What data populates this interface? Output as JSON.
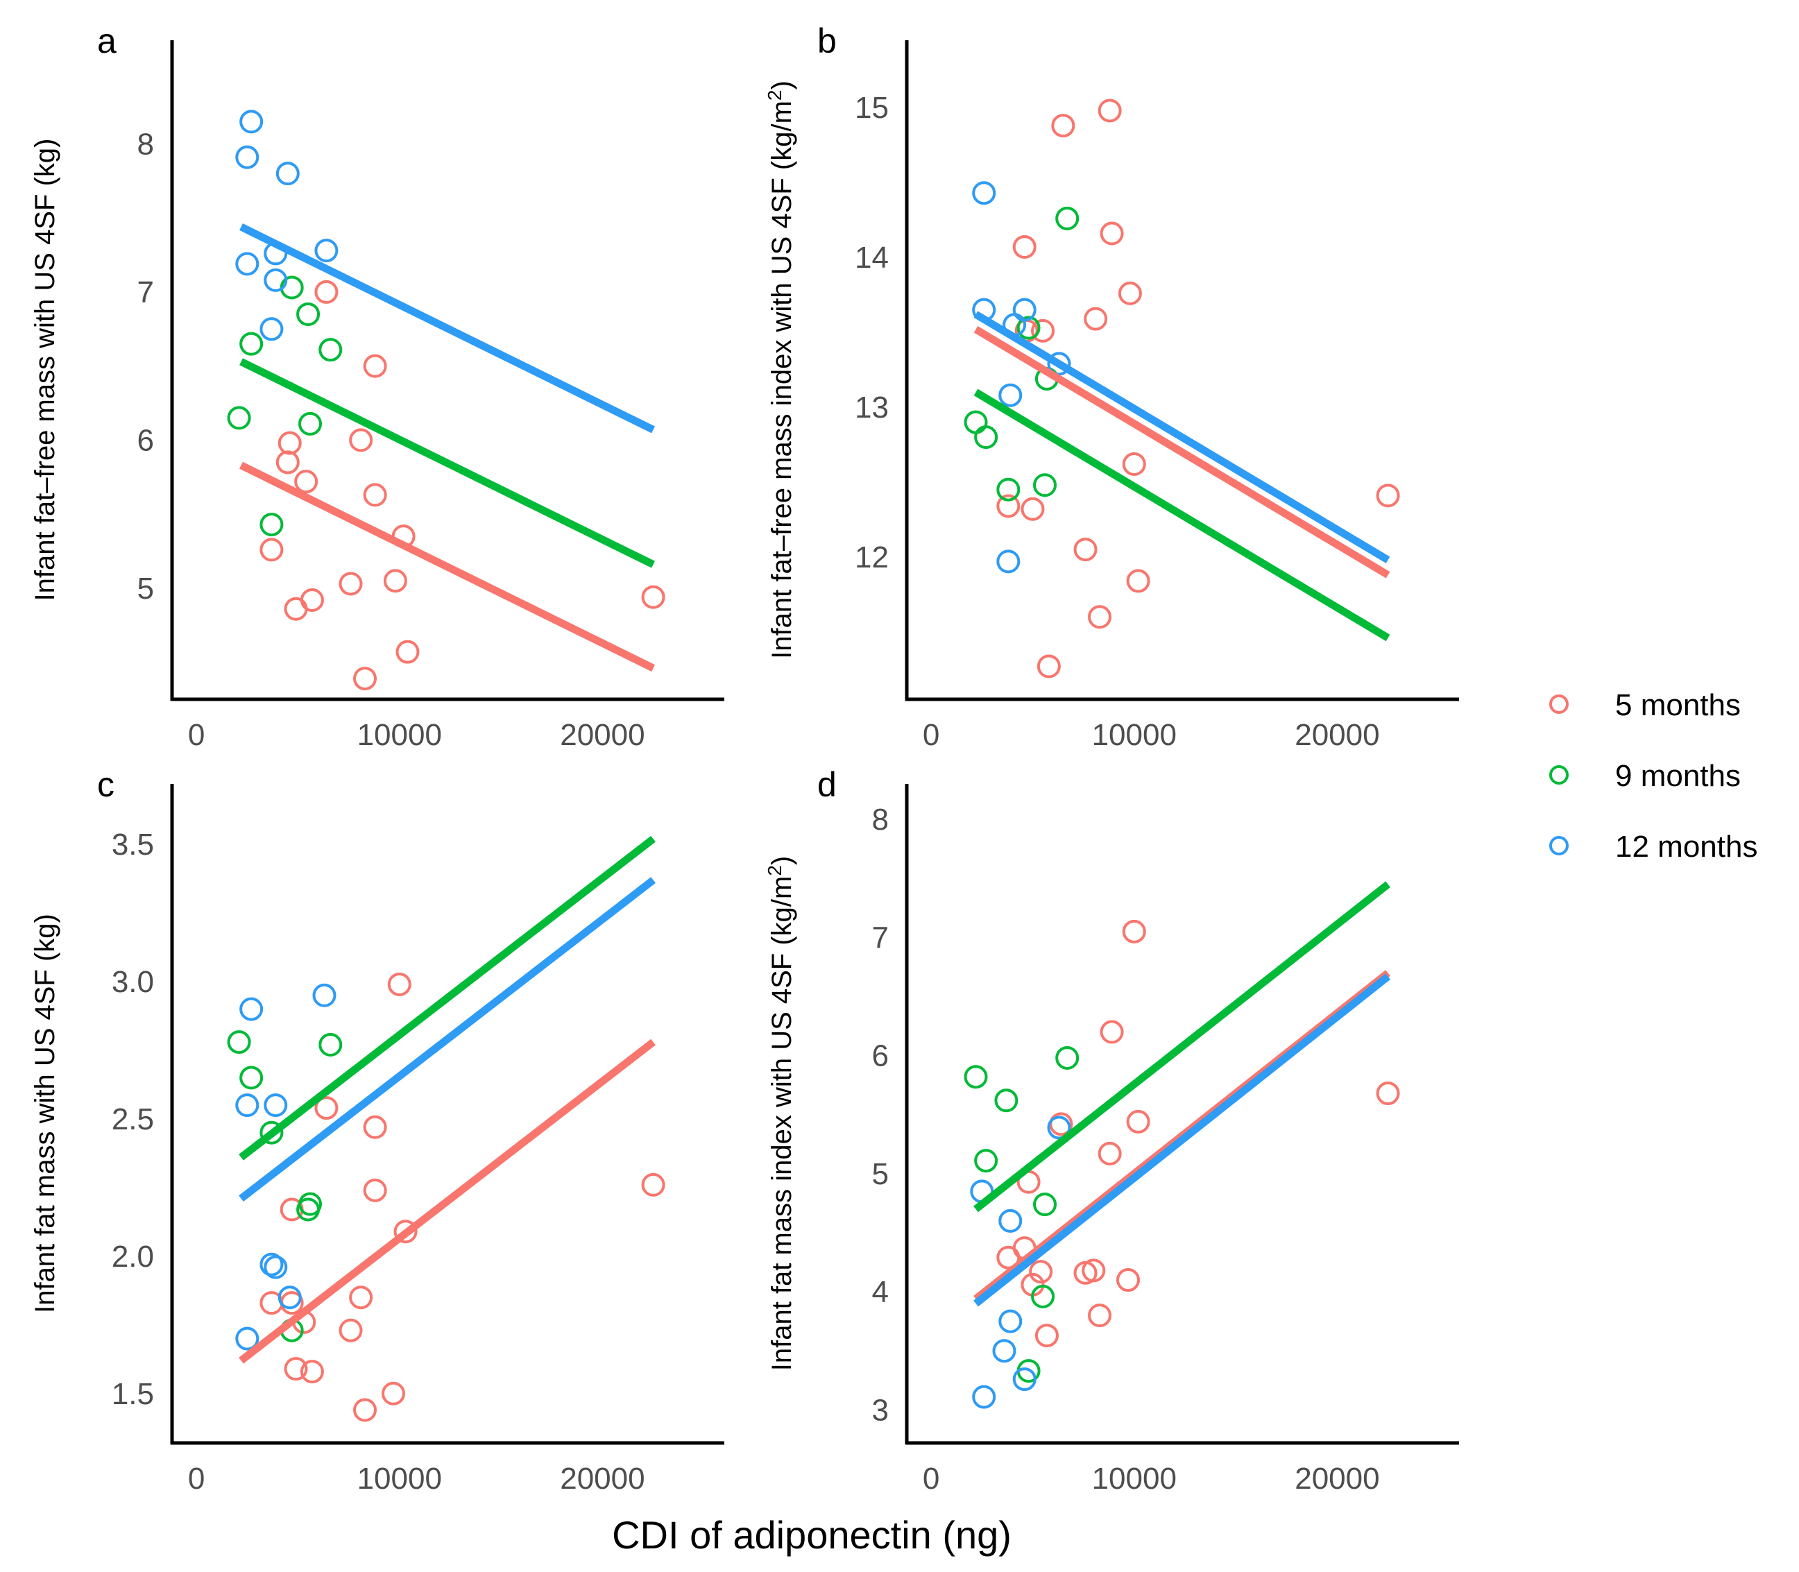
{
  "figure": {
    "xlabel": "CDI of adiponectin (ng)"
  },
  "legend": [
    {
      "label": "5 months",
      "color": "#F8766D"
    },
    {
      "label": "9 months",
      "color": "#00BA38"
    },
    {
      "label": "12 months",
      "color": "#2E9BF5"
    }
  ],
  "chart_data": [
    {
      "panel": "a",
      "type": "scatter",
      "ylabel": "Infant fat–free mass with US 4SF (kg)",
      "xlim": [
        -1200,
        26000
      ],
      "ylim": [
        4.25,
        8.7
      ],
      "xticks": [
        0,
        10000,
        20000
      ],
      "xtick_labels": [
        "0",
        "10000",
        "20000"
      ],
      "yticks": [
        5,
        6,
        7,
        8
      ],
      "ytick_labels": [
        "5",
        "6",
        "7",
        "8"
      ],
      "series": [
        {
          "name": "5 months",
          "color": "#F8766D",
          "points": [
            [
              6400,
              7.0
            ],
            [
              8800,
              6.5
            ],
            [
              8100,
              6.0
            ],
            [
              4600,
              5.98
            ],
            [
              4500,
              5.85
            ],
            [
              5400,
              5.72
            ],
            [
              8800,
              5.63
            ],
            [
              10200,
              5.35
            ],
            [
              3700,
              5.26
            ],
            [
              9800,
              5.05
            ],
            [
              7600,
              5.03
            ],
            [
              5700,
              4.92
            ],
            [
              4900,
              4.86
            ],
            [
              22500,
              4.94
            ],
            [
              10400,
              4.57
            ],
            [
              8300,
              4.39
            ]
          ],
          "fit": [
            [
              2200,
              5.83
            ],
            [
              22500,
              4.46
            ]
          ]
        },
        {
          "name": "9 months",
          "color": "#00BA38",
          "points": [
            [
              4700,
              7.03
            ],
            [
              5500,
              6.85
            ],
            [
              2700,
              6.65
            ],
            [
              6600,
              6.61
            ],
            [
              2100,
              6.15
            ],
            [
              5600,
              6.11
            ],
            [
              3700,
              5.43
            ]
          ],
          "fit": [
            [
              2200,
              6.53
            ],
            [
              22500,
              5.16
            ]
          ]
        },
        {
          "name": "12 months",
          "color": "#2E9BF5",
          "points": [
            [
              2700,
              8.15
            ],
            [
              2500,
              7.91
            ],
            [
              4500,
              7.8
            ],
            [
              6400,
              7.28
            ],
            [
              3900,
              7.26
            ],
            [
              2500,
              7.19
            ],
            [
              3900,
              7.08
            ],
            [
              3700,
              6.75
            ]
          ],
          "fit": [
            [
              2200,
              7.44
            ],
            [
              22500,
              6.07
            ]
          ]
        }
      ]
    },
    {
      "panel": "b",
      "type": "scatter",
      "ylabel": "Infant fat–free mass index with US 4SF (kg/m",
      "ylabel_sup": "2",
      "ylabel_end": ")",
      "xlim": [
        -1200,
        26000
      ],
      "ylim": [
        11.05,
        15.45
      ],
      "xticks": [
        0,
        10000,
        20000
      ],
      "xtick_labels": [
        "0",
        "10000",
        "20000"
      ],
      "yticks": [
        12,
        13,
        14,
        15
      ],
      "ytick_labels": [
        "12",
        "13",
        "14",
        "15"
      ],
      "series": [
        {
          "name": "5 months",
          "color": "#F8766D",
          "points": [
            [
              8800,
              14.98
            ],
            [
              6500,
              14.88
            ],
            [
              8900,
              14.16
            ],
            [
              4600,
              14.07
            ],
            [
              9800,
              13.76
            ],
            [
              8100,
              13.59
            ],
            [
              5500,
              13.51
            ],
            [
              4700,
              13.51
            ],
            [
              10000,
              12.62
            ],
            [
              3800,
              12.34
            ],
            [
              5000,
              12.32
            ],
            [
              22500,
              12.41
            ],
            [
              7600,
              12.05
            ],
            [
              10200,
              11.84
            ],
            [
              8300,
              11.6
            ],
            [
              5800,
              11.27
            ]
          ],
          "fit": [
            [
              2200,
              13.52
            ],
            [
              22500,
              11.88
            ]
          ]
        },
        {
          "name": "9 months",
          "color": "#00BA38",
          "points": [
            [
              6700,
              14.26
            ],
            [
              4800,
              13.53
            ],
            [
              5700,
              13.19
            ],
            [
              2200,
              12.9
            ],
            [
              2700,
              12.8
            ],
            [
              3800,
              12.45
            ],
            [
              5600,
              12.48
            ]
          ],
          "fit": [
            [
              2200,
              13.1
            ],
            [
              22500,
              11.46
            ]
          ]
        },
        {
          "name": "12 months",
          "color": "#2E9BF5",
          "points": [
            [
              2600,
              14.43
            ],
            [
              2600,
              13.65
            ],
            [
              4600,
              13.65
            ],
            [
              4100,
              13.55
            ],
            [
              6300,
              13.29
            ],
            [
              3900,
              13.08
            ],
            [
              3800,
              11.97
            ]
          ],
          "fit": [
            [
              2200,
              13.62
            ],
            [
              22500,
              11.98
            ]
          ]
        }
      ]
    },
    {
      "panel": "c",
      "type": "scatter",
      "ylabel": "Infant fat mass with US 4SF (kg)",
      "xlim": [
        -1200,
        26000
      ],
      "ylim": [
        1.32,
        3.72
      ],
      "xticks": [
        0,
        10000,
        20000
      ],
      "xtick_labels": [
        "0",
        "10000",
        "20000"
      ],
      "yticks": [
        1.5,
        2.0,
        2.5,
        3.0,
        3.5
      ],
      "ytick_labels": [
        "1.5",
        "2.0",
        "2.5",
        "3.0",
        "3.5"
      ],
      "series": [
        {
          "name": "5 months",
          "color": "#F8766D",
          "points": [
            [
              10000,
              2.99
            ],
            [
              6400,
              2.54
            ],
            [
              8800,
              2.47
            ],
            [
              8800,
              2.24
            ],
            [
              4700,
              2.17
            ],
            [
              10300,
              2.09
            ],
            [
              22500,
              2.26
            ],
            [
              8100,
              1.85
            ],
            [
              3700,
              1.83
            ],
            [
              4700,
              1.83
            ],
            [
              5300,
              1.76
            ],
            [
              7600,
              1.73
            ],
            [
              4900,
              1.59
            ],
            [
              5700,
              1.58
            ],
            [
              9700,
              1.5
            ],
            [
              8300,
              1.44
            ]
          ],
          "fit": [
            [
              2200,
              1.62
            ],
            [
              22500,
              2.78
            ]
          ]
        },
        {
          "name": "9 months",
          "color": "#00BA38",
          "points": [
            [
              2100,
              2.78
            ],
            [
              2700,
              2.65
            ],
            [
              6600,
              2.77
            ],
            [
              3700,
              2.45
            ],
            [
              5600,
              2.19
            ],
            [
              5500,
              2.17
            ],
            [
              4700,
              1.73
            ]
          ],
          "fit": [
            [
              2200,
              2.36
            ],
            [
              22500,
              3.52
            ]
          ]
        },
        {
          "name": "12 months",
          "color": "#2E9BF5",
          "points": [
            [
              6300,
              2.95
            ],
            [
              2700,
              2.9
            ],
            [
              2500,
              2.55
            ],
            [
              3900,
              2.55
            ],
            [
              3700,
              1.97
            ],
            [
              3900,
              1.96
            ],
            [
              4600,
              1.85
            ],
            [
              2500,
              1.7
            ]
          ],
          "fit": [
            [
              2200,
              2.21
            ],
            [
              22500,
              3.37
            ]
          ]
        }
      ]
    },
    {
      "panel": "d",
      "type": "scatter",
      "ylabel": "Infant fat mass index with US 4SF (kg/m",
      "ylabel_sup": "2",
      "ylabel_end": ")",
      "xlim": [
        -1200,
        26000
      ],
      "ylim": [
        2.72,
        8.3
      ],
      "xticks": [
        0,
        10000,
        20000
      ],
      "xtick_labels": [
        "0",
        "10000",
        "20000"
      ],
      "yticks": [
        3,
        4,
        5,
        6,
        7,
        8
      ],
      "ytick_labels": [
        "3",
        "4",
        "5",
        "6",
        "7",
        "8"
      ],
      "series": [
        {
          "name": "5 months",
          "color": "#F8766D",
          "points": [
            [
              10000,
              7.05
            ],
            [
              8900,
              6.2
            ],
            [
              22500,
              5.68
            ],
            [
              10200,
              5.44
            ],
            [
              6400,
              5.42
            ],
            [
              8800,
              5.17
            ],
            [
              4800,
              4.93
            ],
            [
              4600,
              4.37
            ],
            [
              3800,
              4.29
            ],
            [
              5400,
              4.17
            ],
            [
              7600,
              4.16
            ],
            [
              8000,
              4.18
            ],
            [
              9700,
              4.1
            ],
            [
              5000,
              4.06
            ],
            [
              8300,
              3.8
            ],
            [
              5700,
              3.63
            ]
          ],
          "fit": [
            [
              2200,
              3.94
            ],
            [
              22500,
              6.7
            ]
          ]
        },
        {
          "name": "9 months",
          "color": "#00BA38",
          "points": [
            [
              6700,
              5.98
            ],
            [
              2200,
              5.82
            ],
            [
              3700,
              5.62
            ],
            [
              2700,
              5.11
            ],
            [
              5600,
              4.74
            ],
            [
              5500,
              3.96
            ],
            [
              4800,
              3.33
            ]
          ],
          "fit": [
            [
              2200,
              4.7
            ],
            [
              22500,
              7.45
            ]
          ]
        },
        {
          "name": "12 months",
          "color": "#2E9BF5",
          "points": [
            [
              6300,
              5.39
            ],
            [
              2500,
              4.85
            ],
            [
              3900,
              4.6
            ],
            [
              3900,
              3.75
            ],
            [
              3600,
              3.5
            ],
            [
              4600,
              3.26
            ],
            [
              2600,
              3.11
            ]
          ],
          "fit": [
            [
              2200,
              3.9
            ],
            [
              22500,
              6.67
            ]
          ]
        }
      ]
    }
  ]
}
